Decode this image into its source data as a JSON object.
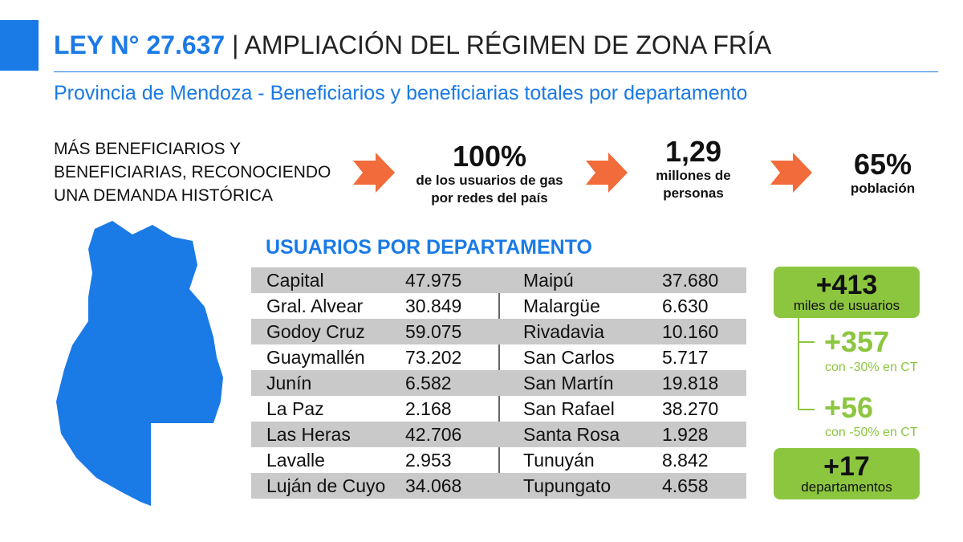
{
  "header": {
    "law": "LEY N° 27.637",
    "title": "| AMPLIACIÓN DEL RÉGIMEN DE ZONA FRÍA",
    "subtitle": "Provincia de Mendoza - Beneficiarios y beneficiarias totales por departamento"
  },
  "intro": [
    "MÁS BENEFICIARIOS Y",
    "BENEFICIARIAS, RECONOCIENDO",
    "UNA DEMANDA HISTÓRICA"
  ],
  "stats": [
    {
      "value": "100%",
      "lines": [
        "de los usuarios de gas",
        "por redes del país"
      ]
    },
    {
      "value": "1,29",
      "lines": [
        "millones de",
        "personas"
      ]
    },
    {
      "value": "65%",
      "lines": [
        "población"
      ]
    }
  ],
  "table": {
    "title": "USUARIOS POR DEPARTAMENTO",
    "left": [
      [
        "Capital",
        "47.975"
      ],
      [
        "Gral. Alvear",
        "30.849"
      ],
      [
        "Godoy Cruz",
        "59.075"
      ],
      [
        "Guaymallén",
        "73.202"
      ],
      [
        "Junín",
        "6.582"
      ],
      [
        "La Paz",
        "2.168"
      ],
      [
        "Las Heras",
        "42.706"
      ],
      [
        "Lavalle",
        "2.953"
      ],
      [
        "Luján de Cuyo",
        "34.068"
      ]
    ],
    "right": [
      [
        "Maipú",
        "37.680"
      ],
      [
        "Malargüe",
        "6.630"
      ],
      [
        "Rivadavia",
        "10.160"
      ],
      [
        "San Carlos",
        "5.717"
      ],
      [
        "San Martín",
        "19.818"
      ],
      [
        "San Rafael",
        "38.270"
      ],
      [
        "Santa Rosa",
        "1.928"
      ],
      [
        "Tunuyán",
        "8.842"
      ],
      [
        "Tupungato",
        "4.658"
      ]
    ]
  },
  "summary": {
    "total": {
      "value": "+413",
      "label": "miles de usuarios"
    },
    "breakdown": [
      {
        "value": "+357",
        "label": "con -30% en CT"
      },
      {
        "value": "+56",
        "label": "con -50% en CT"
      }
    ],
    "departments": {
      "value": "+17",
      "label": "departamentos"
    }
  }
}
